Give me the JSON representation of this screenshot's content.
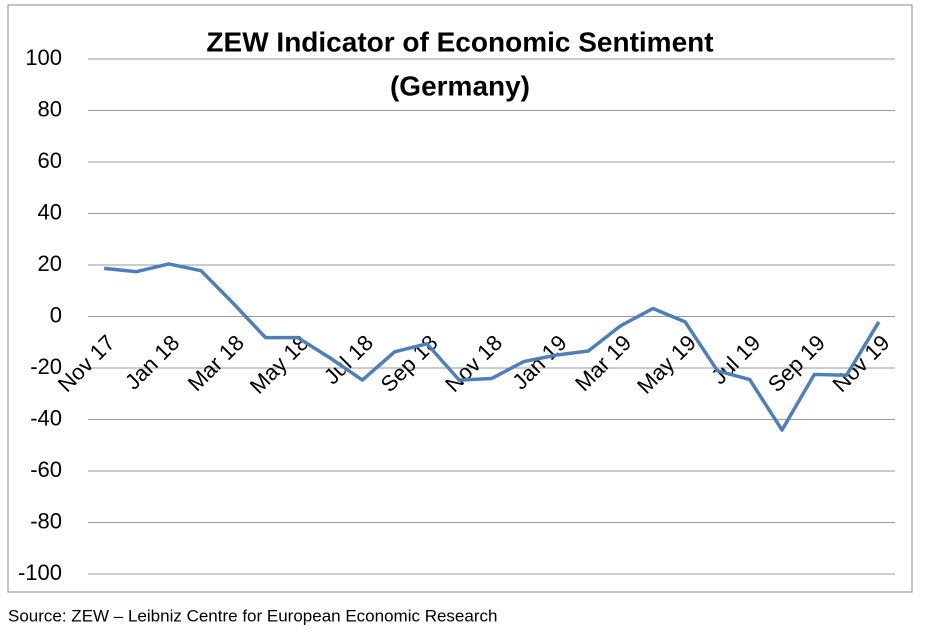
{
  "chart_data": {
    "type": "line",
    "title": [
      "ZEW Indicator of Economic Sentiment",
      "(Germany)"
    ],
    "source": "Source: ZEW – Leibniz Centre for European Economic Research",
    "categories": [
      "Nov 17",
      null,
      "Jan 18",
      null,
      "Mar 18",
      null,
      "May 18",
      null,
      "Jul 18",
      null,
      "Sep 18",
      null,
      "Nov 18",
      null,
      "Jan 19",
      null,
      "Mar 19",
      null,
      "May 19",
      null,
      "Jul 19",
      null,
      "Sep 19",
      null,
      "Nov 19"
    ],
    "series": [
      {
        "name": "ZEW Indicator of Economic Sentiment",
        "color": "#4f7fb8",
        "values": [
          18.7,
          17.4,
          20.4,
          17.8,
          5.1,
          -8.2,
          -8.2,
          -16.1,
          -24.7,
          -13.7,
          -10.6,
          -24.7,
          -24.1,
          -17.5,
          -15.0,
          -13.4,
          -3.6,
          3.1,
          -2.1,
          -21.1,
          -24.5,
          -44.1,
          -22.5,
          -22.8,
          -2.1
        ]
      }
    ],
    "ylim": [
      -100,
      100
    ],
    "yticks": [
      -100,
      -80,
      -60,
      -40,
      -20,
      0,
      20,
      40,
      60,
      80,
      100
    ],
    "grid": true
  }
}
